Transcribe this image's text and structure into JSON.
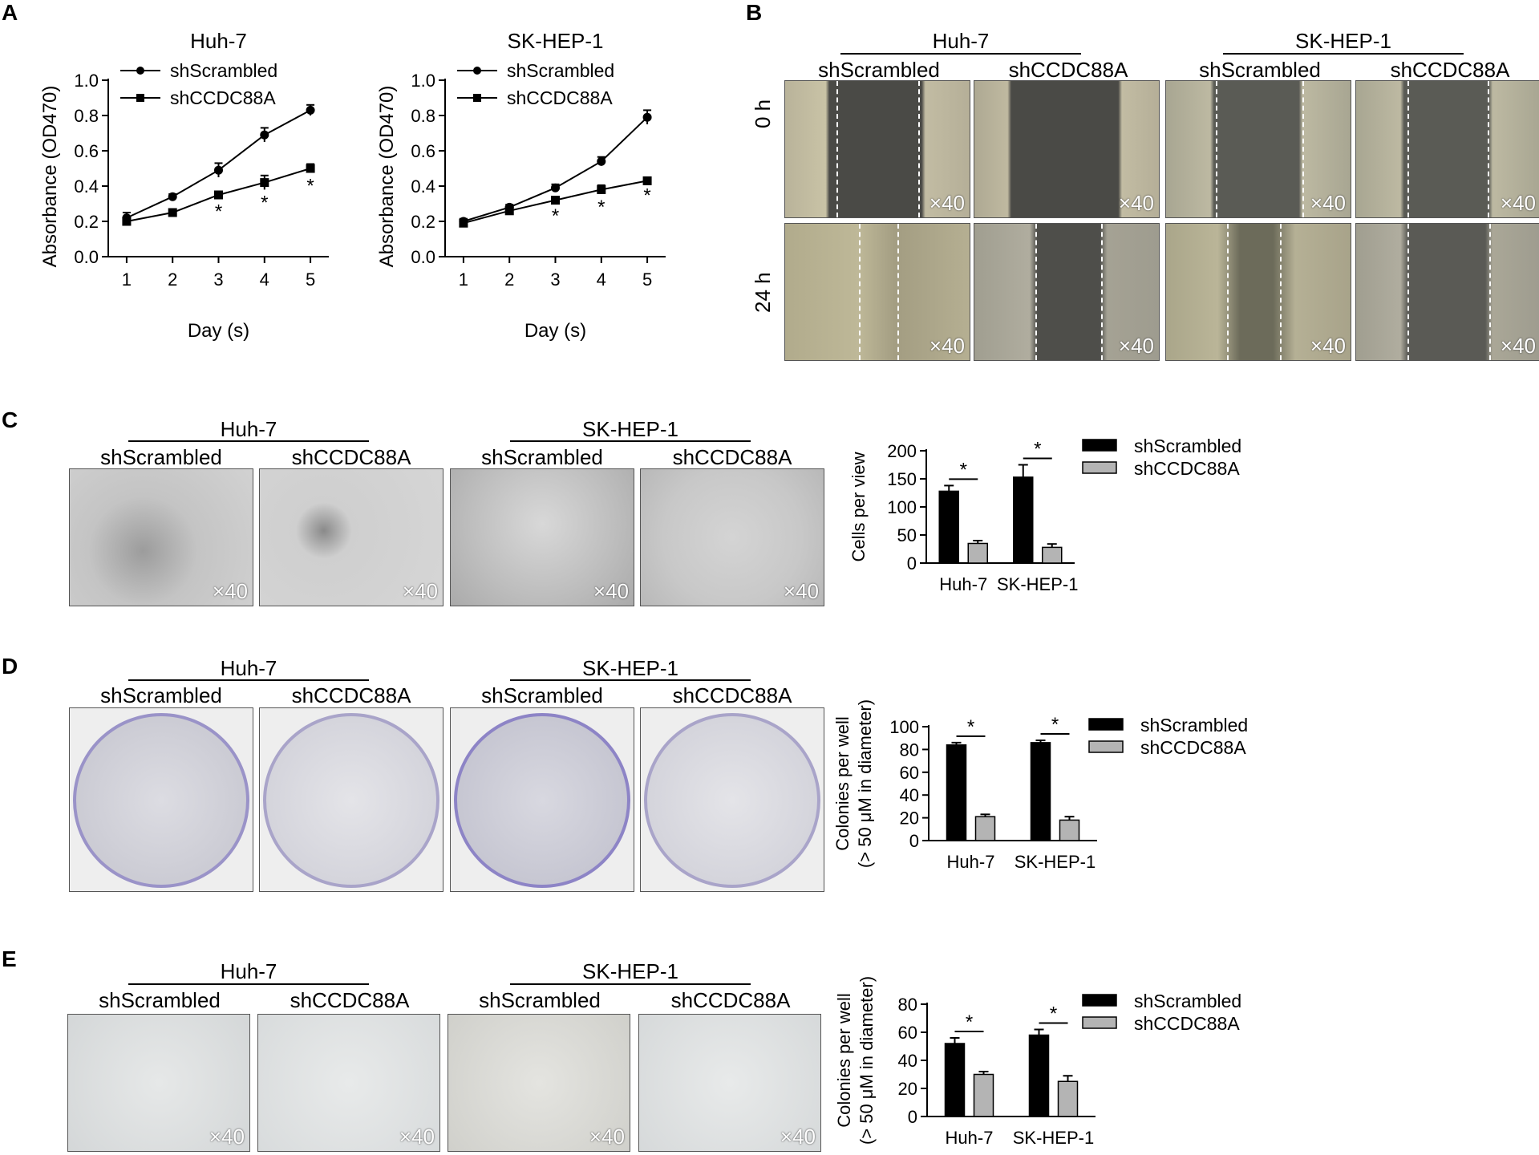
{
  "panels": {
    "A": "A",
    "B": "B",
    "C": "C",
    "D": "D",
    "E": "E"
  },
  "magnification": "×40",
  "panel_b": {
    "lines": [
      "Huh-7",
      "SK-HEP-1"
    ],
    "conditions": [
      "shScrambled",
      "shCCDC88A",
      "shScrambled",
      "shCCDC88A"
    ],
    "rows": [
      "0 h",
      "24 h"
    ]
  },
  "panel_c": {
    "lines": [
      "Huh-7",
      "SK-HEP-1"
    ],
    "conditions": [
      "shScrambled",
      "shCCDC88A",
      "shScrambled",
      "shCCDC88A"
    ]
  },
  "panel_d": {
    "lines": [
      "Huh-7",
      "SK-HEP-1"
    ],
    "conditions": [
      "shScrambled",
      "shCCDC88A",
      "shScrambled",
      "shCCDC88A"
    ]
  },
  "panel_e": {
    "lines": [
      "Huh-7",
      "SK-HEP-1"
    ],
    "conditions": [
      "shScrambled",
      "shCCDC88A",
      "shScrambled",
      "shCCDC88A"
    ]
  },
  "chart_data": [
    {
      "id": "A1",
      "type": "line",
      "title": "Huh-7",
      "xlabel": "Day (s)",
      "ylabel": "Absorbance (OD470)",
      "x": [
        1,
        2,
        3,
        4,
        5
      ],
      "ylim": [
        0,
        1.0
      ],
      "yticks": [
        "0.0",
        "0.2",
        "0.4",
        "0.6",
        "0.8",
        "1.0"
      ],
      "series": [
        {
          "name": "shScrambled",
          "marker": "circle",
          "values": [
            0.22,
            0.34,
            0.49,
            0.69,
            0.83
          ],
          "err": [
            0.03,
            0.015,
            0.04,
            0.04,
            0.03
          ]
        },
        {
          "name": "shCCDC88A",
          "marker": "square",
          "values": [
            0.2,
            0.25,
            0.35,
            0.42,
            0.5
          ],
          "err": [
            0.02,
            0.015,
            0.02,
            0.04,
            0.025
          ]
        }
      ],
      "significance_days": [
        3,
        4,
        5
      ],
      "annotation": "*"
    },
    {
      "id": "A2",
      "type": "line",
      "title": "SK-HEP-1",
      "xlabel": "Day (s)",
      "ylabel": "Absorbance (OD470)",
      "x": [
        1,
        2,
        3,
        4,
        5
      ],
      "ylim": [
        0,
        1.0
      ],
      "yticks": [
        "0.0",
        "0.2",
        "0.4",
        "0.6",
        "0.8",
        "1.0"
      ],
      "series": [
        {
          "name": "shScrambled",
          "marker": "circle",
          "values": [
            0.2,
            0.28,
            0.39,
            0.54,
            0.79
          ],
          "err": [
            0.015,
            0.015,
            0.02,
            0.025,
            0.04
          ]
        },
        {
          "name": "shCCDC88A",
          "marker": "square",
          "values": [
            0.19,
            0.26,
            0.32,
            0.38,
            0.43
          ],
          "err": [
            0.015,
            0.015,
            0.015,
            0.025,
            0.01
          ]
        }
      ],
      "significance_days": [
        3,
        4,
        5
      ],
      "annotation": "*"
    },
    {
      "id": "C",
      "type": "bar",
      "ylabel": "Cells per view",
      "categories": [
        "Huh-7",
        "SK-HEP-1"
      ],
      "ylim": [
        0,
        200
      ],
      "yticks": [
        "0",
        "50",
        "100",
        "150",
        "200"
      ],
      "series": [
        {
          "name": "shScrambled",
          "color": "#000000",
          "values": [
            128,
            153
          ],
          "err": [
            10,
            22
          ]
        },
        {
          "name": "shCCDC88A",
          "color": "#b4b4b4",
          "values": [
            35,
            28
          ],
          "err": [
            5,
            6
          ]
        }
      ],
      "annotation": "*",
      "legend": "top-right"
    },
    {
      "id": "D",
      "type": "bar",
      "ylabel": [
        "Colonies per well",
        "(> 50 μM in diameter)"
      ],
      "categories": [
        "Huh-7",
        "SK-HEP-1"
      ],
      "ylim": [
        0,
        100
      ],
      "yticks": [
        "0",
        "20",
        "40",
        "60",
        "80",
        "100"
      ],
      "series": [
        {
          "name": "shScrambled",
          "color": "#000000",
          "values": [
            84,
            86
          ],
          "err": [
            2,
            2
          ]
        },
        {
          "name": "shCCDC88A",
          "color": "#b4b4b4",
          "values": [
            21,
            18
          ],
          "err": [
            2,
            3
          ]
        }
      ],
      "annotation": "*",
      "legend": "top-right"
    },
    {
      "id": "E",
      "type": "bar",
      "ylabel": [
        "Colonies per well",
        "(> 50 μM in diameter)"
      ],
      "categories": [
        "Huh-7",
        "SK-HEP-1"
      ],
      "ylim": [
        0,
        80
      ],
      "yticks": [
        "0",
        "20",
        "40",
        "60",
        "80"
      ],
      "series": [
        {
          "name": "shScrambled",
          "color": "#000000",
          "values": [
            52,
            58
          ],
          "err": [
            4,
            4
          ]
        },
        {
          "name": "shCCDC88A",
          "color": "#b4b4b4",
          "values": [
            30,
            25
          ],
          "err": [
            2,
            4
          ]
        }
      ],
      "annotation": "*",
      "legend": "top-right"
    }
  ]
}
